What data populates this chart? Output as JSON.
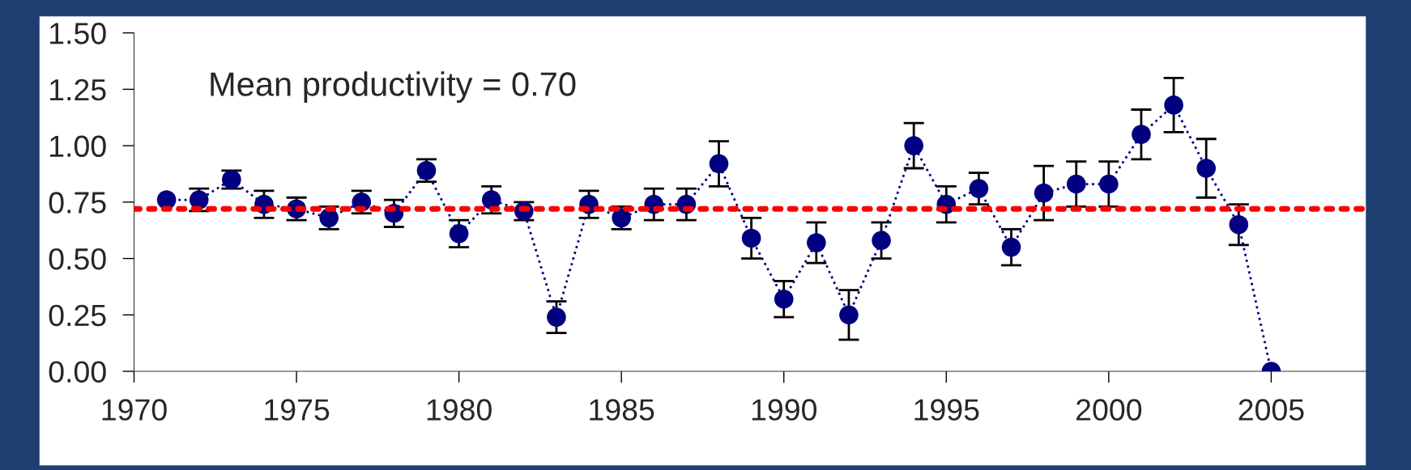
{
  "chart_data": {
    "type": "line",
    "x": [
      1971,
      1972,
      1973,
      1974,
      1975,
      1976,
      1977,
      1978,
      1979,
      1980,
      1981,
      1982,
      1983,
      1984,
      1985,
      1986,
      1987,
      1988,
      1989,
      1990,
      1991,
      1992,
      1993,
      1994,
      1995,
      1996,
      1997,
      1998,
      1999,
      2000,
      2001,
      2002,
      2003,
      2004,
      2005
    ],
    "series": [
      {
        "color": "#000080",
        "values": [
          0.76,
          0.76,
          0.85,
          0.74,
          0.72,
          0.68,
          0.75,
          0.7,
          0.89,
          0.61,
          0.76,
          0.71,
          0.24,
          0.74,
          0.68,
          0.74,
          0.74,
          0.92,
          0.59,
          0.32,
          0.57,
          0.25,
          0.58,
          1.0,
          0.74,
          0.81,
          0.55,
          0.79,
          0.83,
          0.83,
          1.05,
          1.18,
          0.9,
          0.65,
          0.0
        ],
        "errors": [
          null,
          0.05,
          0.04,
          0.06,
          0.05,
          0.05,
          0.05,
          0.06,
          0.05,
          0.06,
          0.06,
          0.04,
          0.07,
          0.06,
          0.05,
          0.07,
          0.07,
          0.1,
          0.09,
          0.08,
          0.09,
          0.11,
          0.08,
          0.1,
          0.08,
          0.07,
          0.08,
          0.12,
          0.1,
          0.1,
          0.11,
          0.12,
          0.13,
          0.09,
          null
        ]
      }
    ],
    "xlim": [
      1970,
      2008
    ],
    "xticks": [
      1970,
      1975,
      1980,
      1985,
      1990,
      1995,
      2000,
      2005
    ],
    "ylim": [
      0,
      1.5
    ],
    "yticks": [
      {
        "value": 0,
        "label": "0.00"
      },
      {
        "value": 0.25,
        "label": "0.25"
      },
      {
        "value": 0.5,
        "label": "0.50"
      },
      {
        "value": 0.75,
        "label": "0.75"
      },
      {
        "value": 1.0,
        "label": "1.00"
      },
      {
        "value": 1.25,
        "label": "1.25"
      },
      {
        "value": 1.5,
        "label": "1.50"
      }
    ],
    "ref_lines": [
      {
        "axis": "y",
        "value": 0.72,
        "color": "#ff0000",
        "line_style": "dotted"
      }
    ],
    "annotations": [
      "Mean productivity = 0.70"
    ],
    "marker": "circle",
    "line_style": "dotted",
    "grid": false,
    "legend": false
  }
}
